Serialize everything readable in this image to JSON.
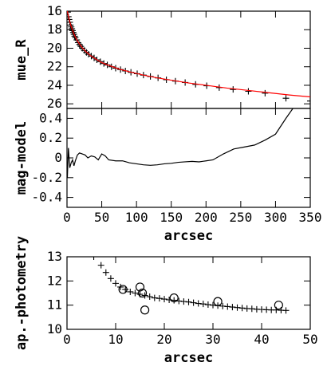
{
  "chart_data": [
    {
      "panel": "top",
      "type": "scatter",
      "xlim": [
        0,
        350
      ],
      "ylim": [
        16,
        26.5
      ],
      "y_inverted": true,
      "ylabel": "mue_R",
      "yticks": [
        16,
        18,
        20,
        22,
        24,
        26
      ],
      "series": [
        {
          "marker": "plus",
          "color": "#000000",
          "points": [
            [
              1,
              16.1
            ],
            [
              2,
              16.6
            ],
            [
              3,
              16.9
            ],
            [
              4,
              17.2
            ],
            [
              5,
              17.5
            ],
            [
              6,
              17.7
            ],
            [
              7,
              17.9
            ],
            [
              8,
              18.1
            ],
            [
              9,
              18.3
            ],
            [
              10,
              18.5
            ],
            [
              11,
              18.7
            ],
            [
              12,
              18.85
            ],
            [
              14,
              19.1
            ],
            [
              16,
              19.4
            ],
            [
              18,
              19.6
            ],
            [
              20,
              19.8
            ],
            [
              22,
              20.0
            ],
            [
              25,
              20.25
            ],
            [
              28,
              20.45
            ],
            [
              31,
              20.65
            ],
            [
              35,
              20.85
            ],
            [
              39,
              21.05
            ],
            [
              43,
              21.25
            ],
            [
              48,
              21.45
            ],
            [
              53,
              21.65
            ],
            [
              58,
              21.8
            ],
            [
              64,
              22.0
            ],
            [
              70,
              22.15
            ],
            [
              77,
              22.3
            ],
            [
              84,
              22.45
            ],
            [
              92,
              22.6
            ],
            [
              101,
              22.75
            ],
            [
              110,
              22.9
            ],
            [
              120,
              23.05
            ],
            [
              131,
              23.2
            ],
            [
              143,
              23.4
            ],
            [
              156,
              23.55
            ],
            [
              170,
              23.7
            ],
            [
              185,
              23.9
            ],
            [
              201,
              24.05
            ],
            [
              219,
              24.25
            ],
            [
              239,
              24.45
            ],
            [
              261,
              24.65
            ],
            [
              285,
              24.85
            ],
            [
              315,
              25.4
            ],
            [
              350,
              25.7
            ]
          ]
        },
        {
          "marker": "line",
          "color": "#ff0000",
          "points": [
            [
              0.5,
              16.0
            ],
            [
              2,
              16.55
            ],
            [
              4,
              17.15
            ],
            [
              6,
              17.65
            ],
            [
              8,
              18.05
            ],
            [
              10,
              18.45
            ],
            [
              12,
              18.8
            ],
            [
              15,
              19.2
            ],
            [
              18,
              19.55
            ],
            [
              22,
              19.95
            ],
            [
              27,
              20.35
            ],
            [
              33,
              20.75
            ],
            [
              40,
              21.1
            ],
            [
              50,
              21.55
            ],
            [
              60,
              21.85
            ],
            [
              75,
              22.25
            ],
            [
              90,
              22.55
            ],
            [
              110,
              22.9
            ],
            [
              130,
              23.2
            ],
            [
              150,
              23.45
            ],
            [
              175,
              23.75
            ],
            [
              200,
              24.0
            ],
            [
              230,
              24.3
            ],
            [
              260,
              24.55
            ],
            [
              290,
              24.8
            ],
            [
              320,
              25.05
            ],
            [
              350,
              25.25
            ]
          ]
        }
      ]
    },
    {
      "panel": "middle",
      "type": "line",
      "xlim": [
        0,
        350
      ],
      "ylim": [
        -0.5,
        0.5
      ],
      "xlabel": "arcsec",
      "ylabel": "mag-model",
      "xticks": [
        0,
        50,
        100,
        150,
        200,
        250,
        300,
        350
      ],
      "yticks": [
        0.4,
        0.2,
        0,
        -0.2,
        -0.4
      ],
      "series": [
        {
          "color": "#000000",
          "points": [
            [
              0.5,
              -0.2
            ],
            [
              2,
              0.1
            ],
            [
              4,
              -0.1
            ],
            [
              6,
              -0.05
            ],
            [
              8,
              -0.02
            ],
            [
              10,
              -0.08
            ],
            [
              12,
              -0.03
            ],
            [
              15,
              0.03
            ],
            [
              18,
              0.05
            ],
            [
              22,
              0.04
            ],
            [
              26,
              0.03
            ],
            [
              30,
              0.0
            ],
            [
              35,
              0.02
            ],
            [
              40,
              0.01
            ],
            [
              45,
              -0.02
            ],
            [
              50,
              0.04
            ],
            [
              55,
              0.02
            ],
            [
              60,
              -0.02
            ],
            [
              70,
              -0.03
            ],
            [
              80,
              -0.03
            ],
            [
              90,
              -0.05
            ],
            [
              100,
              -0.06
            ],
            [
              110,
              -0.07
            ],
            [
              120,
              -0.075
            ],
            [
              130,
              -0.07
            ],
            [
              140,
              -0.06
            ],
            [
              150,
              -0.055
            ],
            [
              160,
              -0.045
            ],
            [
              170,
              -0.04
            ],
            [
              180,
              -0.035
            ],
            [
              190,
              -0.04
            ],
            [
              200,
              -0.03
            ],
            [
              210,
              -0.02
            ],
            [
              225,
              0.04
            ],
            [
              240,
              0.09
            ],
            [
              255,
              0.11
            ],
            [
              270,
              0.13
            ],
            [
              285,
              0.18
            ],
            [
              300,
              0.24
            ],
            [
              315,
              0.4
            ],
            [
              325,
              0.5
            ]
          ]
        }
      ]
    },
    {
      "panel": "bottom",
      "type": "scatter",
      "xlim": [
        0,
        50
      ],
      "ylim": [
        10,
        13
      ],
      "xlabel": "arcsec",
      "ylabel": "ap.-photometry",
      "xticks": [
        0,
        10,
        20,
        30,
        40,
        50
      ],
      "yticks": [
        10,
        11,
        12,
        13
      ],
      "series": [
        {
          "marker": "plus",
          "color": "#000000",
          "points": [
            [
              5.5,
              13.0
            ],
            [
              7,
              12.65
            ],
            [
              8,
              12.35
            ],
            [
              9,
              12.1
            ],
            [
              10,
              11.9
            ],
            [
              11,
              11.75
            ],
            [
              12,
              11.65
            ],
            [
              13,
              11.55
            ],
            [
              14,
              11.5
            ],
            [
              15,
              11.45
            ],
            [
              16,
              11.4
            ],
            [
              17,
              11.35
            ],
            [
              18,
              11.3
            ],
            [
              19,
              11.28
            ],
            [
              20,
              11.25
            ],
            [
              21,
              11.22
            ],
            [
              22,
              11.2
            ],
            [
              23,
              11.17
            ],
            [
              24,
              11.15
            ],
            [
              25,
              11.13
            ],
            [
              26,
              11.1
            ],
            [
              27,
              11.07
            ],
            [
              28,
              11.05
            ],
            [
              29,
              11.02
            ],
            [
              30,
              11.0
            ],
            [
              31,
              10.98
            ],
            [
              32,
              10.96
            ],
            [
              33,
              10.94
            ],
            [
              34,
              10.92
            ],
            [
              35,
              10.9
            ],
            [
              36,
              10.88
            ],
            [
              37,
              10.86
            ],
            [
              38,
              10.85
            ],
            [
              39,
              10.83
            ],
            [
              40,
              10.82
            ],
            [
              41,
              10.81
            ],
            [
              42,
              10.8
            ],
            [
              43,
              10.8
            ],
            [
              44,
              10.79
            ],
            [
              45,
              10.78
            ]
          ]
        },
        {
          "marker": "circle",
          "color": "#000000",
          "points": [
            [
              11.5,
              11.65
            ],
            [
              15,
              11.75
            ],
            [
              15.5,
              11.5
            ],
            [
              16,
              10.8
            ],
            [
              22,
              11.3
            ],
            [
              31,
              11.15
            ],
            [
              43.5,
              11.0
            ]
          ]
        }
      ]
    }
  ]
}
